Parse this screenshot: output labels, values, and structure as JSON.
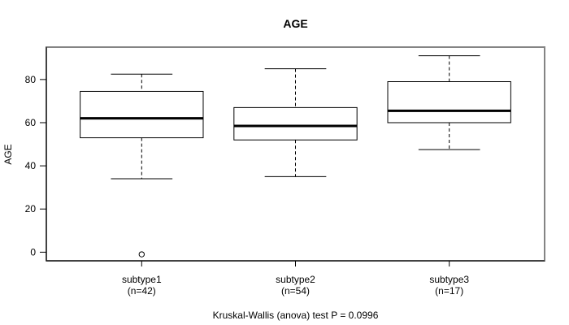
{
  "chart_data": {
    "type": "boxplot",
    "title": "AGE",
    "ylabel": "AGE",
    "caption": "Kruskal-Wallis (anova) test P = 0.0996",
    "categories": [
      "subtype1",
      "subtype2",
      "subtype3"
    ],
    "category_counts": [
      "(n=42)",
      "(n=54)",
      "(n=17)"
    ],
    "yticks": [
      0,
      20,
      40,
      60,
      80
    ],
    "ylim": [
      -4,
      95
    ],
    "grid": false,
    "legend": "none",
    "series": [
      {
        "name": "subtype1",
        "n": 42,
        "whisker_low": 34,
        "q1": 53,
        "median": 62,
        "q3": 74.5,
        "whisker_high": 82.5,
        "outliers": [
          -1
        ]
      },
      {
        "name": "subtype2",
        "n": 54,
        "whisker_low": 35,
        "q1": 52,
        "median": 58.5,
        "q3": 67,
        "whisker_high": 85,
        "outliers": []
      },
      {
        "name": "subtype3",
        "n": 17,
        "whisker_low": 47.5,
        "q1": 60,
        "median": 65.5,
        "q3": 79,
        "whisker_high": 91,
        "outliers": []
      }
    ],
    "colors": {
      "box_stroke": "#000000",
      "median": "#000000",
      "frame": "#848484",
      "axis": "#000000",
      "text": "#000000",
      "background": "#ffffff"
    }
  }
}
